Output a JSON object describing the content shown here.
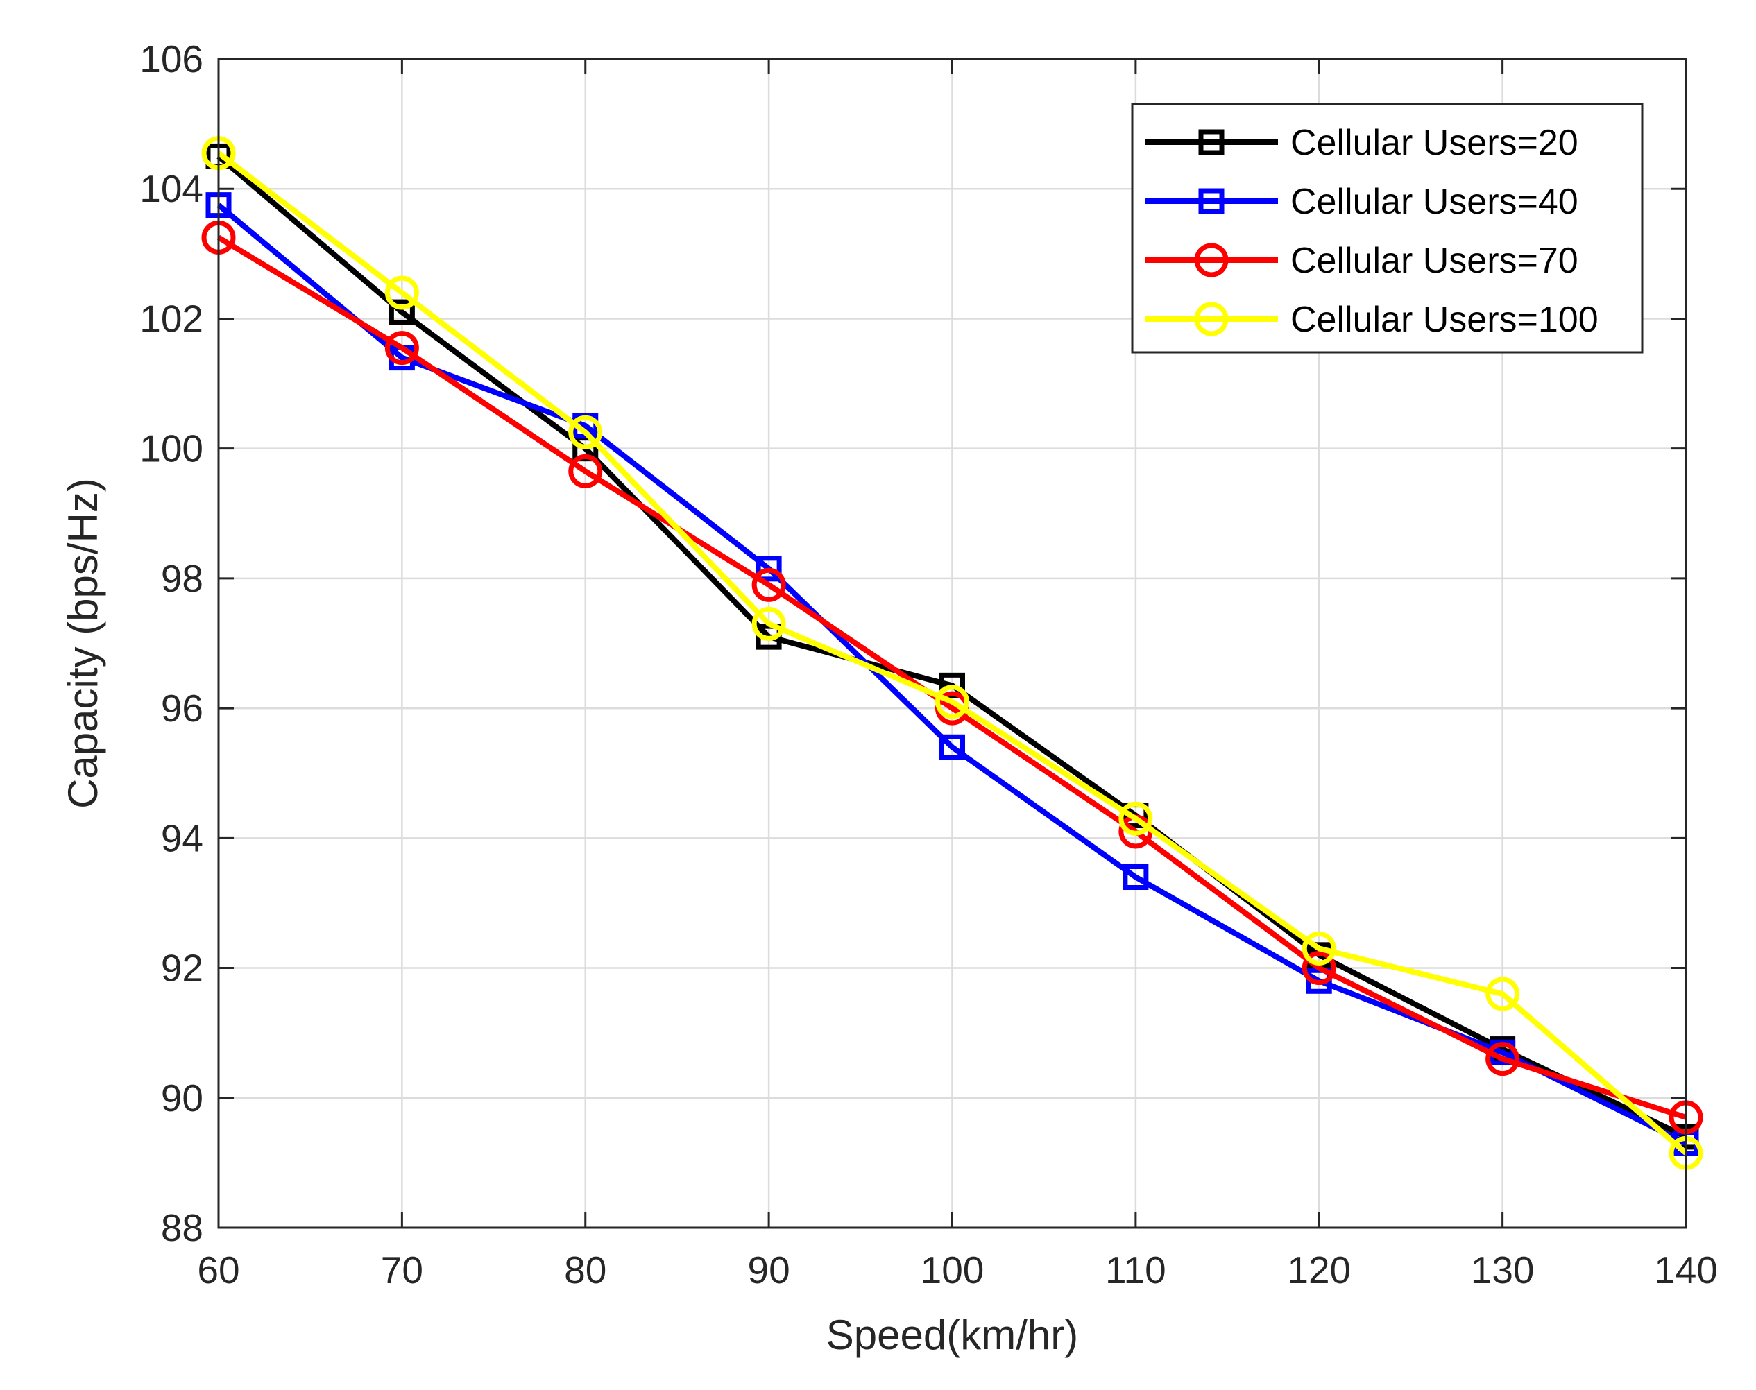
{
  "chart_data": {
    "type": "line",
    "title": "",
    "xlabel": "Speed(km/hr)",
    "ylabel": "Capacity (bps/Hz)",
    "x": [
      60,
      70,
      80,
      90,
      100,
      110,
      120,
      130,
      140
    ],
    "xlim": [
      60,
      140
    ],
    "ylim": [
      88,
      106
    ],
    "xticks": [
      60,
      70,
      80,
      90,
      100,
      110,
      120,
      130,
      140
    ],
    "yticks": [
      88,
      90,
      92,
      94,
      96,
      98,
      100,
      102,
      104,
      106
    ],
    "grid": true,
    "legend_position": "top-right",
    "series": [
      {
        "name": "Cellular Users=20",
        "color": "#000000",
        "marker": "square",
        "values": [
          104.5,
          102.1,
          100.0,
          97.1,
          96.35,
          94.35,
          92.2,
          90.75,
          89.4
        ]
      },
      {
        "name": "Cellular Users=40",
        "color": "#0000ff",
        "marker": "square",
        "values": [
          103.75,
          101.4,
          100.35,
          98.15,
          95.4,
          93.4,
          91.8,
          90.7,
          89.3
        ]
      },
      {
        "name": "Cellular Users=70",
        "color": "#ff0000",
        "marker": "circle",
        "values": [
          103.25,
          101.55,
          99.65,
          97.9,
          96.0,
          94.1,
          92.0,
          90.6,
          89.7
        ]
      },
      {
        "name": "Cellular Users=100",
        "color": "#ffff00",
        "marker": "circle",
        "values": [
          104.55,
          102.4,
          100.25,
          97.3,
          96.1,
          94.3,
          92.3,
          91.6,
          89.15
        ]
      }
    ]
  }
}
